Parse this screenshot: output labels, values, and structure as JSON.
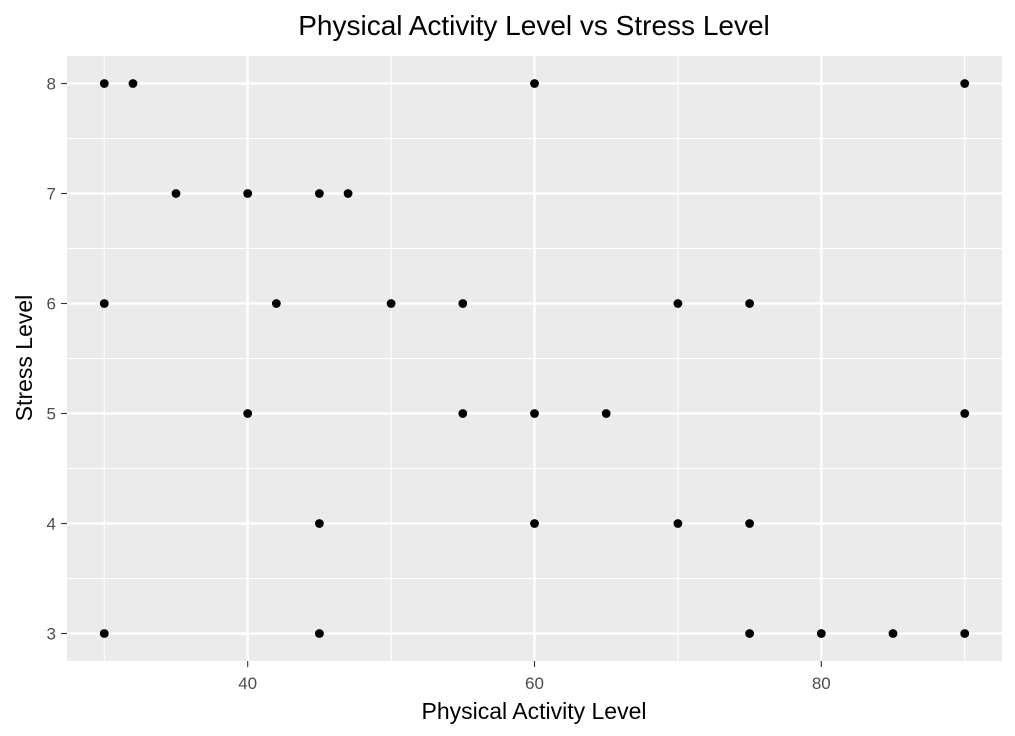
{
  "chart_data": {
    "type": "scatter",
    "title": "Physical Activity Level vs Stress Level",
    "xlabel": "Physical Activity Level",
    "ylabel": "Stress Level",
    "xlim": [
      27.4,
      92.6
    ],
    "ylim": [
      2.75,
      8.25
    ],
    "x_ticks": [
      40,
      60,
      80
    ],
    "y_ticks": [
      3,
      4,
      5,
      6,
      7,
      8
    ],
    "x_minor_gridlines": [
      30,
      50,
      70,
      90
    ],
    "y_minor_gridlines": [
      3.5,
      4.5,
      5.5,
      6.5,
      7.5
    ],
    "grid": true,
    "legend": "none",
    "points": [
      {
        "x": 30,
        "y": 8
      },
      {
        "x": 32,
        "y": 8
      },
      {
        "x": 60,
        "y": 8
      },
      {
        "x": 90,
        "y": 8
      },
      {
        "x": 35,
        "y": 7
      },
      {
        "x": 40,
        "y": 7
      },
      {
        "x": 45,
        "y": 7
      },
      {
        "x": 47,
        "y": 7
      },
      {
        "x": 30,
        "y": 6
      },
      {
        "x": 42,
        "y": 6
      },
      {
        "x": 50,
        "y": 6
      },
      {
        "x": 55,
        "y": 6
      },
      {
        "x": 70,
        "y": 6
      },
      {
        "x": 75,
        "y": 6
      },
      {
        "x": 40,
        "y": 5
      },
      {
        "x": 55,
        "y": 5
      },
      {
        "x": 60,
        "y": 5
      },
      {
        "x": 65,
        "y": 5
      },
      {
        "x": 90,
        "y": 5
      },
      {
        "x": 45,
        "y": 4
      },
      {
        "x": 60,
        "y": 4
      },
      {
        "x": 70,
        "y": 4
      },
      {
        "x": 75,
        "y": 4
      },
      {
        "x": 30,
        "y": 3
      },
      {
        "x": 45,
        "y": 3
      },
      {
        "x": 75,
        "y": 3
      },
      {
        "x": 80,
        "y": 3
      },
      {
        "x": 85,
        "y": 3
      },
      {
        "x": 90,
        "y": 3
      }
    ]
  },
  "colors": {
    "panel_background": "#EBEBEB",
    "gridline": "#FFFFFF",
    "point": "#000000",
    "tick_label": "#4D4D4D",
    "tick_mark": "#333333"
  }
}
